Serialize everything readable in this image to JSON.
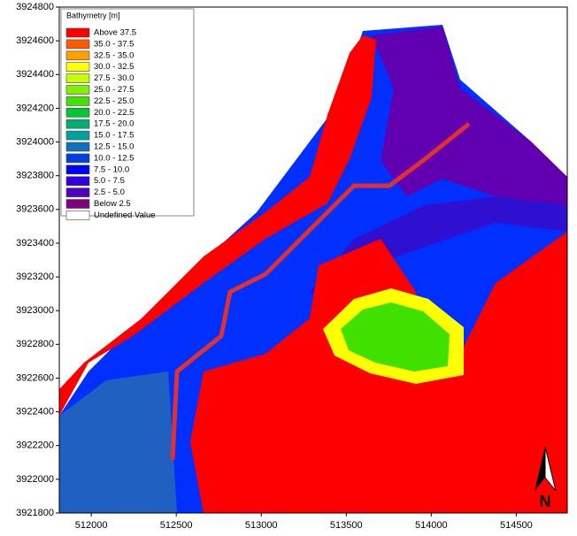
{
  "legend": {
    "title": "Bathymetry [m]",
    "entries": [
      {
        "label": "Above 37.5",
        "color": "#ff0000"
      },
      {
        "label": "35.0 - 37.5",
        "color": "#ff5a00"
      },
      {
        "label": "32.5 - 35.0",
        "color": "#ffa000"
      },
      {
        "label": "30.0 - 32.5",
        "color": "#ffff00"
      },
      {
        "label": "27.5 - 30.0",
        "color": "#c8ff00"
      },
      {
        "label": "25.0 - 27.5",
        "color": "#80f000"
      },
      {
        "label": "22.5 - 25.0",
        "color": "#40e000"
      },
      {
        "label": "20.0 - 22.5",
        "color": "#00c830"
      },
      {
        "label": "17.5 - 20.0",
        "color": "#00b070"
      },
      {
        "label": "15.0 - 17.5",
        "color": "#00a0a0"
      },
      {
        "label": "12.5 - 15.0",
        "color": "#1070c0"
      },
      {
        "label": "10.0 - 12.5",
        "color": "#0040e0"
      },
      {
        "label": "7.5 - 10.0",
        "color": "#0000ff"
      },
      {
        "label": "5.0 - 7.5",
        "color": "#3000e0"
      },
      {
        "label": "2.5 - 5.0",
        "color": "#5000c0"
      },
      {
        "label": "Below 2.5",
        "color": "#800080"
      },
      {
        "label": "Undefined Value",
        "color": "#ffffff"
      }
    ]
  },
  "axes": {
    "xlim": [
      511812,
      514800
    ],
    "xticks": [
      512000,
      512500,
      513000,
      513500,
      514000,
      514500
    ],
    "ylim": [
      3921800,
      3924800
    ],
    "yticks": [
      3921800,
      3922000,
      3922200,
      3922400,
      3922600,
      3922800,
      3923000,
      3923200,
      3923400,
      3923600,
      3923800,
      3924000,
      3924200,
      3924400,
      3924600,
      3924800
    ]
  },
  "north_label": "N"
}
